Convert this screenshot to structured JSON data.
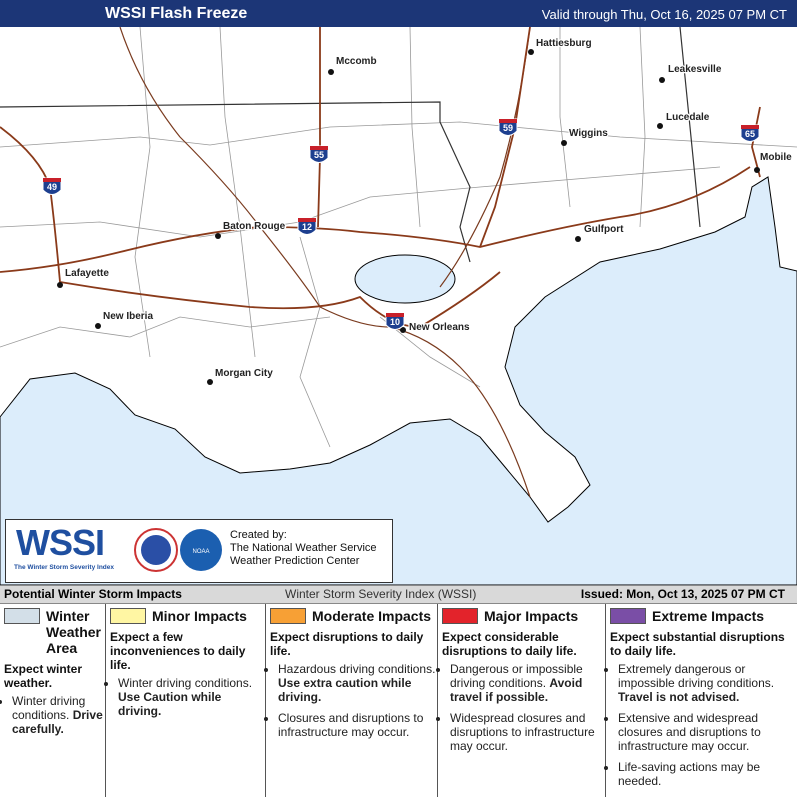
{
  "header": {
    "title": "WSSI Flash Freeze",
    "valid": "Valid through Thu, Oct 16, 2025 07 PM CT"
  },
  "map": {
    "cities": [
      "Hattiesburg",
      "Mccomb",
      "Leakesville",
      "Lucedale",
      "Wiggins",
      "Mobile",
      "Baton Rouge",
      "Gulfport",
      "Lafayette",
      "New Iberia",
      "New Orleans",
      "Morgan City"
    ],
    "shields": [
      "59",
      "55",
      "49",
      "12",
      "10",
      "65"
    ]
  },
  "credit": {
    "logo": "WSSI",
    "logo_sub": "The Winter Storm Severity Index",
    "noaa": "NOAA",
    "lines": [
      "Created by:",
      "The National Weather Service",
      "Weather Prediction Center"
    ]
  },
  "legend": {
    "title": "Potential Winter Storm Impacts",
    "index": "Winter Storm Severity Index (WSSI)",
    "issued": "Issued: Mon, Oct 13, 2025 07 PM CT",
    "columns": [
      {
        "name": "Winter Weather Area",
        "color": "#d3dfe8",
        "summary": "Expect winter weather.",
        "items": [
          {
            "text": "Winter driving conditions.",
            "bold": "Drive carefully."
          }
        ]
      },
      {
        "name": "Minor Impacts",
        "color": "#fff6a3",
        "summary": "Expect a few inconveniences to daily life.",
        "items": [
          {
            "text": "Winter driving conditions.",
            "bold": "Use Caution while driving."
          }
        ]
      },
      {
        "name": "Moderate Impacts",
        "color": "#f7a035",
        "summary": "Expect disruptions to daily life.",
        "items": [
          {
            "text": "Hazardous driving conditions.",
            "bold": "Use extra caution while driving."
          },
          {
            "text": "Closures and disruptions to infrastructure may occur."
          }
        ]
      },
      {
        "name": "Major Impacts",
        "color": "#e3232b",
        "summary": "Expect considerable disruptions to daily life.",
        "items": [
          {
            "text": "Dangerous or impossible driving conditions.",
            "bold": "Avoid travel if possible."
          },
          {
            "text": "Widespread closures and disruptions to infrastructure may occur."
          }
        ]
      },
      {
        "name": "Extreme Impacts",
        "color": "#7a4ea6",
        "summary": "Expect substantial disruptions to daily life.",
        "items": [
          {
            "text": "Extremely dangerous or impossible driving conditions.",
            "bold": "Travel is not advised."
          },
          {
            "text": "Extensive and widespread closures and disruptions to infrastructure may occur."
          },
          {
            "text": "Life-saving actions may be needed."
          }
        ]
      }
    ]
  }
}
